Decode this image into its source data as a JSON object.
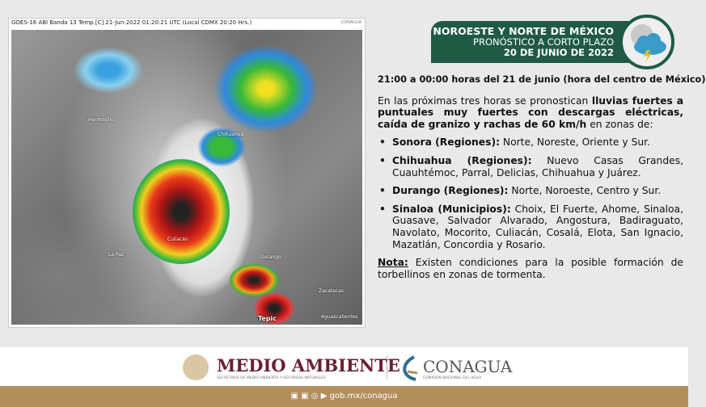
{
  "map": {
    "caption": "GOES-16 ABI Banda 13 Temp.[C] 21-Jun-2022 01:20:21 UTC (Local CDMX  20:20 Hrs.)",
    "logo": "CONAGUA",
    "cities": [
      "Hermosillo",
      "Chihuahua",
      "Culiacán",
      "La Paz",
      "Durango",
      "Zacatecas",
      "Aguascalientes",
      "Tepic"
    ]
  },
  "banner": {
    "region": "NOROESTE Y NORTE DE MÉXICO",
    "subtitle": "PRONÓSTICO A CORTO PLAZO",
    "date": "20 DE JUNIO DE 2022",
    "icon": "storm-cloud-icon"
  },
  "forecast": {
    "time": "21:00 a 00:00 horas del 21 de junio (hora del centro de México)",
    "intro_a": "En las próximas tres horas se pronostican ",
    "intro_b": "lluvias fuertes a puntuales muy fuertes con descargas eléctricas, caída de granizo y rachas de 60 km/h",
    "intro_c": " en zonas de:",
    "items": [
      {
        "state": "Sonora (Regiones):",
        "areas": " Norte, Noreste, Oriente y Sur."
      },
      {
        "state": "Chihuahua (Regiones):",
        "areas": " Nuevo Casas Grandes, Cuauhtémoc,  Parral, Delicias, Chihuahua y Juárez."
      },
      {
        "state": "Durango (Regiones):",
        "areas": " Norte, Noroeste, Centro y Sur."
      },
      {
        "state": "Sinaloa (Municipios):",
        "areas": " Choix, El Fuerte, Ahome, Sinaloa, Guasave, Salvador Alvarado, Angostura, Badiraguato, Navolato, Mocorito, Culiacán, Cosalá, Elota, San Ignacio, Mazatlán, Concordia y Rosario."
      }
    ],
    "note_label": "Nota:",
    "note": " Existen condiciones para la posible formación de torbellinos en zonas de tormenta."
  },
  "footer": {
    "medio": "MEDIO AMBIENTE",
    "medio_sub": "SECRETARÍA DE MEDIO AMBIENTE Y RECURSOS NATURALES",
    "conagua": "CONAGUA",
    "conagua_sub": "COMISIÓN NACIONAL DEL AGUA",
    "url": "gob.mx/conagua",
    "social": [
      "facebook-icon",
      "twitter-icon",
      "instagram-icon",
      "youtube-icon"
    ]
  }
}
